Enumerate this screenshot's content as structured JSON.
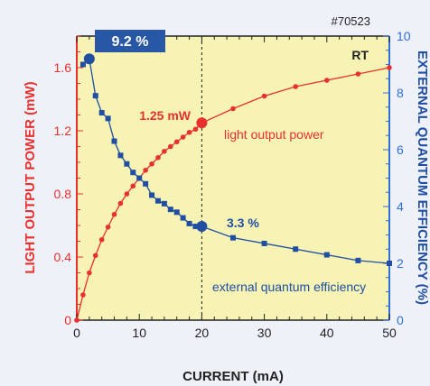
{
  "chart_data": {
    "type": "line",
    "sample_id": "#70523",
    "condition": "RT",
    "xlabel": "CURRENT  (mA)",
    "ylabel_left": "LIGHT OUTPUT POWER  (mW)",
    "ylabel_right": "EXTERNAL QUANTUM EFFICIENCY  (%)",
    "xlim": [
      0,
      50
    ],
    "ylim_left": [
      0,
      1.8
    ],
    "ylim_right": [
      0,
      10
    ],
    "x_ticks": [
      0,
      10,
      20,
      30,
      40,
      50
    ],
    "y_left_ticks": [
      0,
      0.4,
      0.8,
      1.2,
      1.6
    ],
    "y_left_tick_labels": [
      "0",
      "0.4",
      "0.8",
      "1.2",
      "1.6"
    ],
    "y_right_ticks": [
      0,
      2,
      4,
      6,
      8,
      10
    ],
    "colors": {
      "power": "#e8302e",
      "efficiency": "#1f4ea3",
      "plot_bg": "#f6f3b4",
      "right_axis": "#2f6fd6",
      "badge": "#2857a6"
    },
    "series": [
      {
        "name": "light output power",
        "axis": "left",
        "x": [
          0,
          1,
          2,
          3,
          4,
          5,
          6,
          7,
          8,
          9,
          10,
          11,
          12,
          13,
          14,
          15,
          16,
          17,
          18,
          19,
          20,
          25,
          30,
          35,
          40,
          45,
          50
        ],
        "y": [
          0,
          0.16,
          0.3,
          0.41,
          0.51,
          0.59,
          0.67,
          0.74,
          0.8,
          0.85,
          0.9,
          0.95,
          0.99,
          1.03,
          1.07,
          1.1,
          1.13,
          1.16,
          1.19,
          1.21,
          1.25,
          1.34,
          1.42,
          1.48,
          1.52,
          1.56,
          1.6
        ]
      },
      {
        "name": "external quantum efficiency",
        "axis": "right",
        "x": [
          1,
          2,
          3,
          4,
          5,
          6,
          7,
          8,
          9,
          10,
          11,
          12,
          13,
          14,
          15,
          16,
          17,
          18,
          19,
          20,
          25,
          30,
          35,
          40,
          45,
          50
        ],
        "y": [
          9.0,
          9.2,
          7.9,
          7.3,
          7.1,
          6.3,
          5.8,
          5.5,
          5.2,
          5.0,
          4.8,
          4.4,
          4.2,
          4.1,
          3.9,
          3.8,
          3.6,
          3.4,
          3.3,
          3.3,
          2.9,
          2.7,
          2.5,
          2.3,
          2.1,
          2.0
        ]
      }
    ],
    "reference_line_x": 20,
    "highlights": [
      {
        "series": "light output power",
        "x": 20,
        "y": 1.25
      },
      {
        "series": "external quantum efficiency",
        "x": 20,
        "y": 3.3
      },
      {
        "series": "external quantum efficiency",
        "x": 2,
        "y": 9.2
      }
    ],
    "annotations": {
      "peak_efficiency": "9.2 %",
      "power_at_20": "1.25 mW",
      "efficiency_at_20": "3.3 %",
      "power_series_label": "light output power",
      "efficiency_series_label": "external quantum efficiency"
    }
  }
}
